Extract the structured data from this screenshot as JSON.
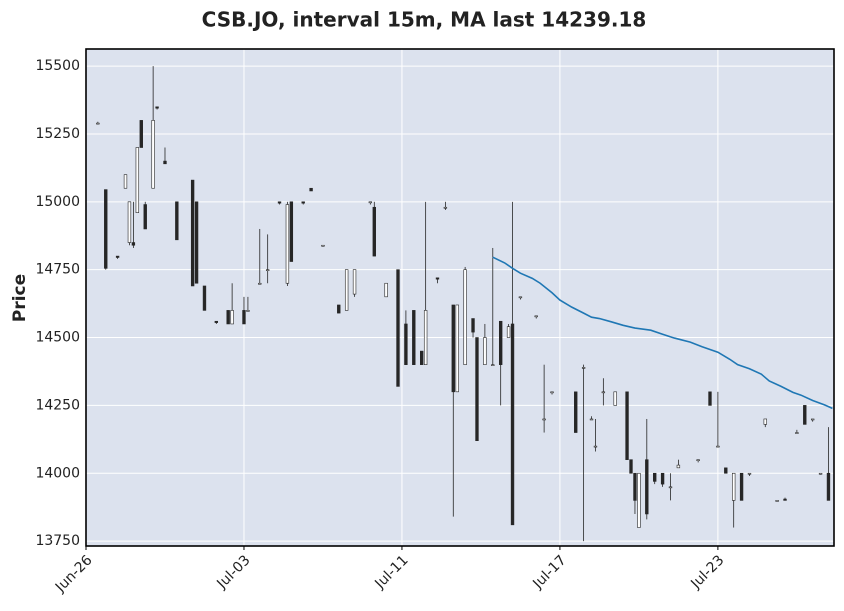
{
  "chart_data": {
    "type": "candlestick",
    "title": "CSB.JO, interval 15m, MA last 14239.18",
    "y_label": "Price",
    "x": [
      3,
      5,
      8,
      10,
      11,
      12,
      13,
      14,
      15,
      17,
      18,
      20,
      23,
      27,
      28,
      30,
      33,
      36,
      37,
      40,
      41,
      44,
      46,
      49,
      51,
      52,
      55,
      57,
      60,
      64,
      66,
      68,
      72,
      73,
      76,
      79,
      81,
      83,
      85,
      86,
      89,
      91,
      93,
      94,
      96,
      98,
      99,
      101,
      103,
      105,
      107,
      108,
      110,
      114,
      116,
      118,
      124,
      126,
      128,
      129,
      131,
      134,
      137,
      138,
      139,
      140,
      142,
      144,
      146,
      148,
      150,
      155,
      158,
      160,
      162,
      164,
      166,
      168,
      172,
      175,
      177,
      180,
      182,
      184,
      186,
      188
    ],
    "open": [
      15290,
      15045,
      14800,
      15050,
      14850,
      14850,
      14960,
      15300,
      14990,
      15050,
      15350,
      15150,
      15000,
      15080,
      15000,
      14690,
      14560,
      14600,
      14550,
      14600,
      14600,
      14700,
      14750,
      15000,
      14700,
      15000,
      15000,
      15050,
      14840,
      14620,
      14600,
      14660,
      15000,
      14980,
      14650,
      14750,
      14550,
      14600,
      14450,
      14400,
      14720,
      14980,
      14620,
      14300,
      14400,
      14570,
      14500,
      14400,
      14400,
      14560,
      14500,
      14550,
      14650,
      14580,
      14200,
      14300,
      14300,
      14390,
      14200,
      14100,
      14300,
      14250,
      14300,
      14050,
      14000,
      13800,
      14050,
      14000,
      14000,
      13950,
      14020,
      14050,
      14300,
      14100,
      14020,
      13900,
      14000,
      14000,
      14180,
      13900,
      13905,
      14150,
      14250,
      14200,
      14000,
      14000
    ],
    "high": [
      15295,
      15045,
      14800,
      15100,
      15000,
      15000,
      15200,
      15300,
      15000,
      15500,
      15350,
      15200,
      15000,
      15080,
      15000,
      14690,
      14560,
      14600,
      14700,
      14650,
      14650,
      14900,
      14880,
      15000,
      15000,
      15000,
      15000,
      15050,
      14840,
      14620,
      14750,
      14750,
      15000,
      15000,
      14700,
      14750,
      14600,
      14600,
      14450,
      15000,
      14720,
      15000,
      14620,
      14620,
      14760,
      14570,
      14500,
      14550,
      14830,
      14560,
      14550,
      15000,
      14650,
      14580,
      14400,
      14300,
      14300,
      14400,
      14210,
      14200,
      14350,
      14300,
      14300,
      14050,
      14000,
      14000,
      14200,
      14000,
      14000,
      14000,
      14050,
      14050,
      14300,
      14300,
      14020,
      14000,
      14000,
      14000,
      14200,
      13900,
      13910,
      14160,
      14250,
      14200,
      14000,
      14170
    ],
    "low": [
      15285,
      14750,
      14790,
      15050,
      14840,
      14830,
      14960,
      15200,
      14900,
      15050,
      15340,
      15140,
      14860,
      14690,
      14700,
      14600,
      14550,
      14550,
      14550,
      14550,
      14600,
      14700,
      14700,
      14990,
      14690,
      14780,
      14990,
      15040,
      14835,
      14590,
      14600,
      14650,
      14990,
      14800,
      14650,
      14320,
      14400,
      14400,
      14400,
      14400,
      14700,
      14970,
      13840,
      14300,
      14400,
      14500,
      14120,
      14400,
      14400,
      14250,
      14500,
      13810,
      14640,
      14570,
      14150,
      14290,
      14150,
      13750,
      14200,
      14080,
      14250,
      14250,
      14050,
      14000,
      13850,
      13800,
      13830,
      13960,
      13950,
      13900,
      14020,
      14040,
      14250,
      14100,
      14000,
      13800,
      13900,
      13990,
      14170,
      13900,
      13900,
      14150,
      14180,
      14190,
      13995,
      13900
    ],
    "close": [
      15290,
      14755,
      14795,
      15100,
      15000,
      14840,
      15200,
      15200,
      14900,
      15300,
      15345,
      15140,
      14860,
      14690,
      14700,
      14600,
      14555,
      14550,
      14600,
      14550,
      14600,
      14700,
      14750,
      14995,
      14990,
      14780,
      14995,
      15040,
      14840,
      14590,
      14750,
      14750,
      15000,
      14800,
      14700,
      14320,
      14400,
      14400,
      14400,
      14600,
      14715,
      14980,
      14300,
      14620,
      14750,
      14520,
      14120,
      14500,
      14400,
      14400,
      14540,
      13810,
      14650,
      14580,
      14200,
      14300,
      14150,
      14390,
      14200,
      14100,
      14300,
      14300,
      14050,
      14000,
      13900,
      14000,
      13850,
      13970,
      13960,
      13950,
      14030,
      14050,
      14250,
      14100,
      14000,
      14000,
      13900,
      14000,
      14200,
      13900,
      13900,
      14150,
      14180,
      14200,
      14000,
      13900
    ],
    "ma": {
      "color": "#1f77b4",
      "x": [
        103,
        106,
        108,
        110,
        113,
        115,
        118,
        120,
        123,
        126,
        128,
        130,
        133,
        136,
        139,
        143,
        146,
        149,
        153,
        156,
        160,
        163,
        165,
        168,
        171,
        173,
        176,
        179,
        181,
        184,
        187,
        189
      ],
      "values": [
        14796,
        14775,
        14755,
        14737,
        14718,
        14700,
        14665,
        14638,
        14612,
        14590,
        14575,
        14570,
        14558,
        14545,
        14535,
        14527,
        14512,
        14498,
        14483,
        14466,
        14446,
        14420,
        14400,
        14385,
        14365,
        14340,
        14320,
        14298,
        14288,
        14268,
        14252,
        14239.18
      ]
    },
    "up_color": "#ffffff",
    "down_color": "#262626",
    "xlim": [
      0,
      189.4
    ],
    "xticks": [
      {
        "value": 0,
        "label": "Jun-26"
      },
      {
        "value": 40,
        "label": "Jul-03"
      },
      {
        "value": 80,
        "label": "Jul-11"
      },
      {
        "value": 120,
        "label": "Jul-17"
      },
      {
        "value": 160,
        "label": "Jul-23"
      }
    ],
    "ylim": [
      13732,
      15563
    ],
    "yticks": [
      13750,
      14000,
      14250,
      14500,
      14750,
      15000,
      15250,
      15500
    ],
    "grid": true
  }
}
